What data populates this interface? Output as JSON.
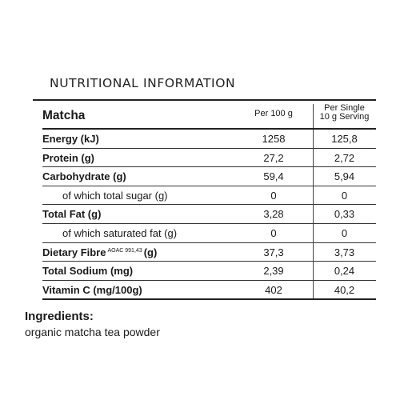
{
  "panel": {
    "title": "NUTRITIONAL INFORMATION",
    "product_name": "Matcha",
    "col1_header": "Per 100 g",
    "col2_header_line1": "Per Single",
    "col2_header_line2": "10 g Serving"
  },
  "rows": [
    {
      "label": "Energy (kJ)",
      "note": "",
      "suffix": "",
      "per100": "1258",
      "perServing": "125,8"
    },
    {
      "label": "Protein (g)",
      "note": "",
      "suffix": "",
      "per100": "27,2",
      "perServing": "2,72"
    },
    {
      "label": "Carbohydrate (g)",
      "note": "",
      "suffix": "",
      "per100": "59,4",
      "perServing": "5,94"
    },
    {
      "label": "of which total sugar (g)",
      "note": "",
      "suffix": "",
      "per100": "0",
      "perServing": "0"
    },
    {
      "label": "Total Fat (g)",
      "note": "",
      "suffix": "",
      "per100": "3,28",
      "perServing": "0,33"
    },
    {
      "label": "of which saturated fat (g)",
      "note": "",
      "suffix": "",
      "per100": "0",
      "perServing": "0"
    },
    {
      "label": "Dietary Fibre",
      "note": "AOAC 991,43",
      "suffix": "(g)",
      "per100": "37,3",
      "perServing": "3,73"
    },
    {
      "label": "Total Sodium (mg)",
      "note": "",
      "suffix": "",
      "per100": "2,39",
      "perServing": "0,24"
    },
    {
      "label": "Vitamin C (mg/100g)",
      "note": "",
      "suffix": "",
      "per100": "402",
      "perServing": "40,2"
    }
  ],
  "ingredients": {
    "title": "Ingredients:",
    "text": "organic matcha tea powder"
  }
}
